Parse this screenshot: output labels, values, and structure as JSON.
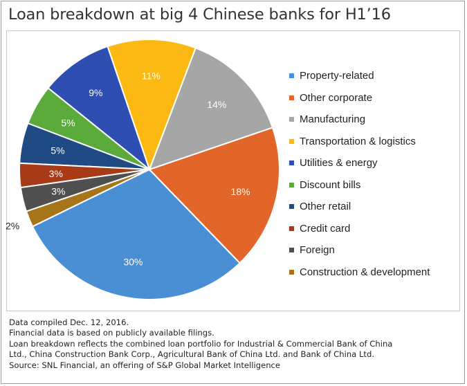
{
  "chart_data": {
    "type": "pie",
    "title": "Loan breakdown at big 4 Chinese banks for H1’16",
    "categories": [
      "Property-related",
      "Other corporate",
      "Manufacturing",
      "Transportation & logistics",
      "Utilities & energy",
      "Discount bills",
      "Other retail",
      "Credit card",
      "Foreign",
      "Construction & development"
    ],
    "values": [
      30,
      18,
      14,
      11,
      9,
      5,
      5,
      3,
      3,
      2
    ],
    "value_labels": [
      "30%",
      "18%",
      "14%",
      "11%",
      "9%",
      "5%",
      "5%",
      "3%",
      "3%",
      "2%"
    ],
    "colors": [
      "#4a8fd3",
      "#e2662a",
      "#a6a6a6",
      "#fdb913",
      "#2e4fb1",
      "#5aab3c",
      "#1f4a84",
      "#a73b18",
      "#4f4f4f",
      "#a67519"
    ],
    "legend_placement": "right"
  },
  "notes": [
    "Data compiled Dec. 12, 2016.",
    "Financial data is based on publicly available filings.",
    "Loan breakdown reflects the combined loan portfolio for Industrial & Commercial Bank of China",
    "Ltd., China Construction Bank Corp., Agricultural Bank of China Ltd. and Bank of China Ltd.",
    "Source: SNL Financial, an offering of S&P Global Market Intelligence"
  ]
}
